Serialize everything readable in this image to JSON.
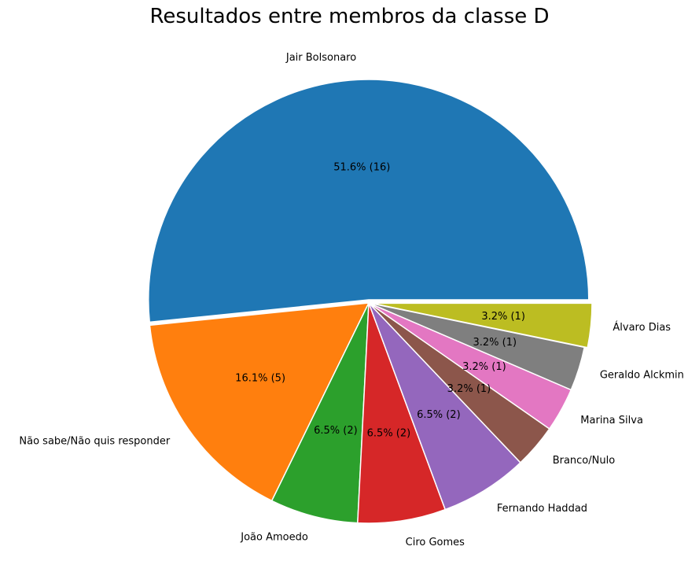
{
  "chart_data": {
    "type": "pie",
    "title": "Resultados entre membros da classe D",
    "slices": [
      {
        "label": "Jair Bolsonaro",
        "value": 16,
        "pct_label": "51.6%  (16)",
        "color": "#1f77b4"
      },
      {
        "label": "Não sabe/Não quis responder",
        "value": 5,
        "pct_label": "16.1%  (5)",
        "color": "#ff7f0e"
      },
      {
        "label": "João Amoedo",
        "value": 2,
        "pct_label": "6.5%  (2)",
        "color": "#2ca02c"
      },
      {
        "label": "Ciro Gomes",
        "value": 2,
        "pct_label": "6.5%  (2)",
        "color": "#d62728"
      },
      {
        "label": "Fernando Haddad",
        "value": 2,
        "pct_label": "6.5%  (2)",
        "color": "#9467bd"
      },
      {
        "label": "Branco/Nulo",
        "value": 1,
        "pct_label": "3.2%  (1)",
        "color": "#8c564b"
      },
      {
        "label": "Marina Silva",
        "value": 1,
        "pct_label": "3.2%  (1)",
        "color": "#e377c2"
      },
      {
        "label": "Geraldo Alckmin",
        "value": 1,
        "pct_label": "3.2%  (1)",
        "color": "#7f7f7f"
      },
      {
        "label": "Álvaro Dias",
        "value": 1,
        "pct_label": "3.2%  (1)",
        "color": "#bcbd22"
      }
    ]
  }
}
